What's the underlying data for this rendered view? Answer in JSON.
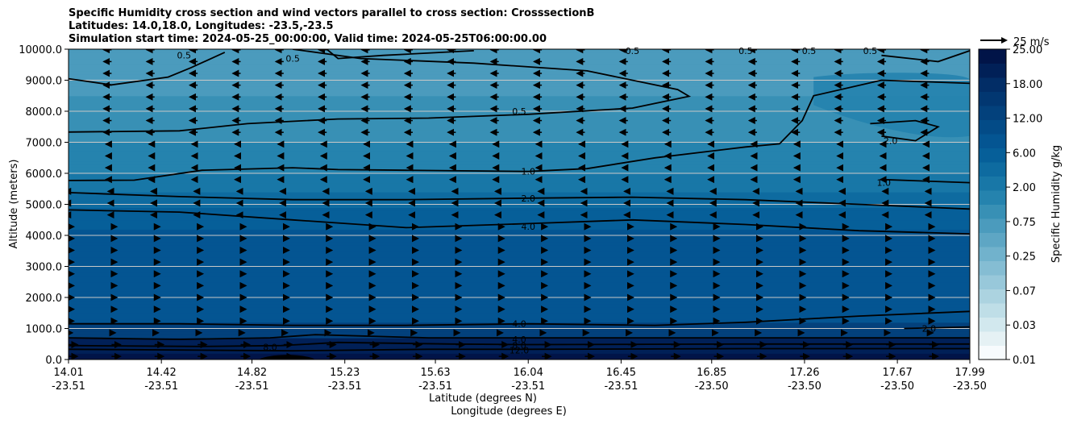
{
  "title_lines": [
    "Specific Humidity cross section and wind vectors parallel to cross section: CrosssectionB",
    "Latitudes: 14.0,18.0, Longitudes: -23.5,-23.5",
    "Simulation start time: 2024-05-25_00:00:00, Valid time: 2024-05-25T06:00:00.00"
  ],
  "chart_data": {
    "type": "heatmap",
    "ylabel": "Altitude (meters)",
    "xlabel_lines": [
      "Latitude (degrees N)",
      "Longitude (degrees E)"
    ],
    "x_ticks": [
      {
        "lat": "14.01",
        "lon": "-23.51"
      },
      {
        "lat": "14.42",
        "lon": "-23.51"
      },
      {
        "lat": "14.82",
        "lon": "-23.51"
      },
      {
        "lat": "15.23",
        "lon": "-23.51"
      },
      {
        "lat": "15.63",
        "lon": "-23.51"
      },
      {
        "lat": "16.04",
        "lon": "-23.51"
      },
      {
        "lat": "16.45",
        "lon": "-23.51"
      },
      {
        "lat": "16.85",
        "lon": "-23.50"
      },
      {
        "lat": "17.26",
        "lon": "-23.50"
      },
      {
        "lat": "17.67",
        "lon": "-23.50"
      },
      {
        "lat": "17.99",
        "lon": "-23.50"
      }
    ],
    "y_ticks": [
      "0.0",
      "1000.0",
      "2000.0",
      "3000.0",
      "4000.0",
      "5000.0",
      "6000.0",
      "7000.0",
      "8000.0",
      "9000.0",
      "10000.0"
    ],
    "ylim": [
      0,
      10000
    ],
    "xlim": [
      14.01,
      17.99
    ],
    "grid": "horizontal",
    "colorbar": {
      "label": "Specific Humidity g/kg",
      "ticks": [
        "0.01",
        "0.03",
        "0.07",
        "0.25",
        "0.75",
        "2.00",
        "6.00",
        "12.00",
        "18.00",
        "25.00"
      ],
      "colors": [
        "#f7fbfd",
        "#e5f1f4",
        "#d2e8ee",
        "#bfdee7",
        "#acd3e0",
        "#98c8da",
        "#85bdd3",
        "#71b2cc",
        "#5ea6c4",
        "#4b9bbd",
        "#3890b5",
        "#2583ae",
        "#1877a7",
        "#0e6ba0",
        "#065f99",
        "#045592",
        "#034b87",
        "#03417c",
        "#023771",
        "#022d66",
        "#012057",
        "#011448"
      ],
      "position": "right"
    },
    "quiver_key": {
      "label": "25 m/s",
      "speed": 25
    },
    "contour_levels": [
      0.5,
      1.0,
      2.0,
      4.0,
      8.0,
      12.0
    ],
    "contour_labels": [
      {
        "text": "0.5",
        "lat": 14.52,
        "alt": 9800
      },
      {
        "text": "0.5",
        "lat": 15.0,
        "alt": 9700
      },
      {
        "text": "0.5",
        "lat": 16.0,
        "alt": 8000
      },
      {
        "text": "0.5",
        "lat": 16.5,
        "alt": 9950
      },
      {
        "text": "0.5",
        "lat": 17.0,
        "alt": 9950
      },
      {
        "text": "0.5",
        "lat": 17.28,
        "alt": 9950
      },
      {
        "text": "0.5",
        "lat": 17.55,
        "alt": 9950
      },
      {
        "text": "1.0",
        "lat": 16.04,
        "alt": 6060
      },
      {
        "text": "1.0",
        "lat": 17.61,
        "alt": 5700
      },
      {
        "text": "2.0",
        "lat": 16.04,
        "alt": 5200
      },
      {
        "text": "2.0",
        "lat": 17.64,
        "alt": 7050
      },
      {
        "text": "2.0",
        "lat": 17.81,
        "alt": 1000
      },
      {
        "text": "4.0",
        "lat": 16.04,
        "alt": 4280
      },
      {
        "text": "4.0",
        "lat": 16.0,
        "alt": 1150
      },
      {
        "text": "4.0",
        "lat": 16.0,
        "alt": 650
      },
      {
        "text": "8.0",
        "lat": 16.0,
        "alt": 450
      },
      {
        "text": "8.0",
        "lat": 14.9,
        "alt": 400
      },
      {
        "text": "12.0",
        "lat": 16.0,
        "alt": 300
      }
    ]
  }
}
